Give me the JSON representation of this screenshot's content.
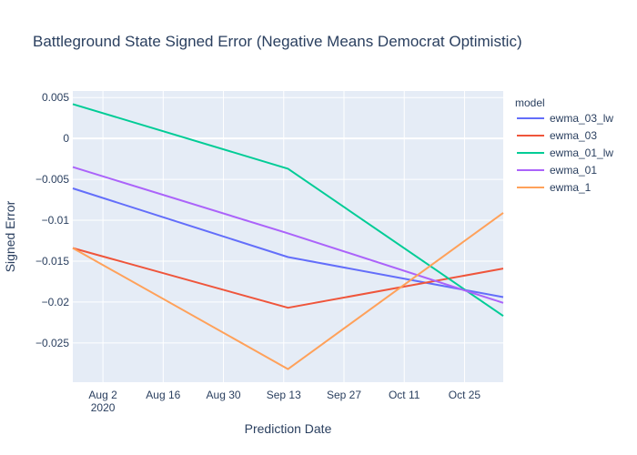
{
  "chart_data": {
    "type": "line",
    "title": "Battleground State Signed Error (Negative Means Democrat Optimistic)",
    "xlabel": "Prediction Date",
    "ylabel": "Signed Error",
    "x_ticks": [
      {
        "date": "2020-08-02",
        "label": "Aug 2",
        "sublabel": "2020"
      },
      {
        "date": "2020-08-16",
        "label": "Aug 16",
        "sublabel": ""
      },
      {
        "date": "2020-08-30",
        "label": "Aug 30",
        "sublabel": ""
      },
      {
        "date": "2020-09-13",
        "label": "Sep 13",
        "sublabel": ""
      },
      {
        "date": "2020-09-27",
        "label": "Sep 27",
        "sublabel": ""
      },
      {
        "date": "2020-10-11",
        "label": "Oct 11",
        "sublabel": ""
      },
      {
        "date": "2020-10-25",
        "label": "Oct 25",
        "sublabel": ""
      }
    ],
    "y_ticks": [
      {
        "value": 0.005,
        "label": "0.005"
      },
      {
        "value": 0,
        "label": "0"
      },
      {
        "value": -0.005,
        "label": "−0.005"
      },
      {
        "value": -0.01,
        "label": "−0.01"
      },
      {
        "value": -0.015,
        "label": "−0.015"
      },
      {
        "value": -0.02,
        "label": "−0.02"
      },
      {
        "value": -0.025,
        "label": "−0.025"
      }
    ],
    "xlim": [
      "2020-07-26",
      "2020-11-03"
    ],
    "ylim": [
      -0.0298,
      0.0058
    ],
    "x": [
      "2020-07-26",
      "2020-09-14",
      "2020-11-03"
    ],
    "legend_title": "model",
    "legend_position": "right",
    "grid": true,
    "series": [
      {
        "name": "ewma_03_lw",
        "color": "#636efa",
        "values": [
          -0.0061,
          -0.0145,
          -0.0194
        ]
      },
      {
        "name": "ewma_03",
        "color": "#EF553B",
        "values": [
          -0.0134,
          -0.0207,
          -0.0159
        ]
      },
      {
        "name": "ewma_01_lw",
        "color": "#00cc96",
        "values": [
          0.0042,
          -0.0037,
          -0.0217
        ]
      },
      {
        "name": "ewma_01",
        "color": "#ab63fa",
        "values": [
          -0.0035,
          -0.0116,
          -0.0201
        ]
      },
      {
        "name": "ewma_1",
        "color": "#FFA15A",
        "values": [
          -0.0134,
          -0.0282,
          -0.0091
        ]
      }
    ]
  }
}
